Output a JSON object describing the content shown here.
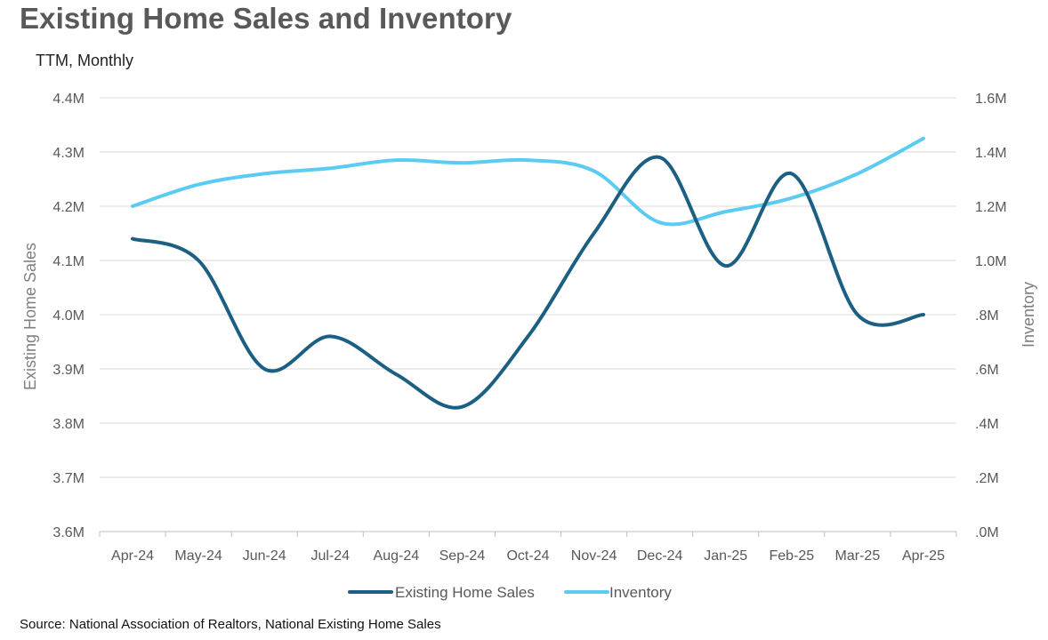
{
  "title": "Existing Home Sales and Inventory",
  "subtitle": "TTM, Monthly",
  "source": "Source: National Association of Realtors, National Existing Home Sales",
  "chart_data": {
    "type": "line",
    "title": "Existing Home Sales and Inventory",
    "subtitle": "TTM, Monthly",
    "x": [
      "Apr-24",
      "May-24",
      "Jun-24",
      "Jul-24",
      "Aug-24",
      "Sep-24",
      "Oct-24",
      "Nov-24",
      "Dec-24",
      "Jan-25",
      "Feb-25",
      "Mar-25",
      "Apr-25"
    ],
    "y_left": {
      "label": "Existing Home Sales",
      "ylim": [
        3.6,
        4.4
      ],
      "ticks": [
        3.6,
        3.7,
        3.8,
        3.9,
        4.0,
        4.1,
        4.2,
        4.3,
        4.4
      ],
      "tick_labels": [
        "3.6M",
        "3.7M",
        "3.8M",
        "3.9M",
        "4.0M",
        "4.1M",
        "4.2M",
        "4.3M",
        "4.4M"
      ]
    },
    "y_right": {
      "label": "Inventory",
      "ylim": [
        0.0,
        1.6
      ],
      "ticks": [
        0.0,
        0.2,
        0.4,
        0.6,
        0.8,
        1.0,
        1.2,
        1.4,
        1.6
      ],
      "tick_labels": [
        ".0M",
        ".2M",
        ".4M",
        ".6M",
        ".8M",
        "1.0M",
        "1.2M",
        "1.4M",
        "1.6M"
      ]
    },
    "series": [
      {
        "name": "Existing Home Sales",
        "axis": "left",
        "color": "#1b5f82",
        "values": [
          4.14,
          4.1,
          3.9,
          3.96,
          3.89,
          3.83,
          3.96,
          4.15,
          4.29,
          4.09,
          4.26,
          4.0,
          4.0
        ]
      },
      {
        "name": "Inventory",
        "axis": "right",
        "color": "#5ccbf2",
        "values": [
          1.2,
          1.28,
          1.32,
          1.34,
          1.37,
          1.36,
          1.37,
          1.33,
          1.14,
          1.18,
          1.23,
          1.32,
          1.45
        ]
      }
    ],
    "grid": true,
    "legend": "bottom"
  }
}
